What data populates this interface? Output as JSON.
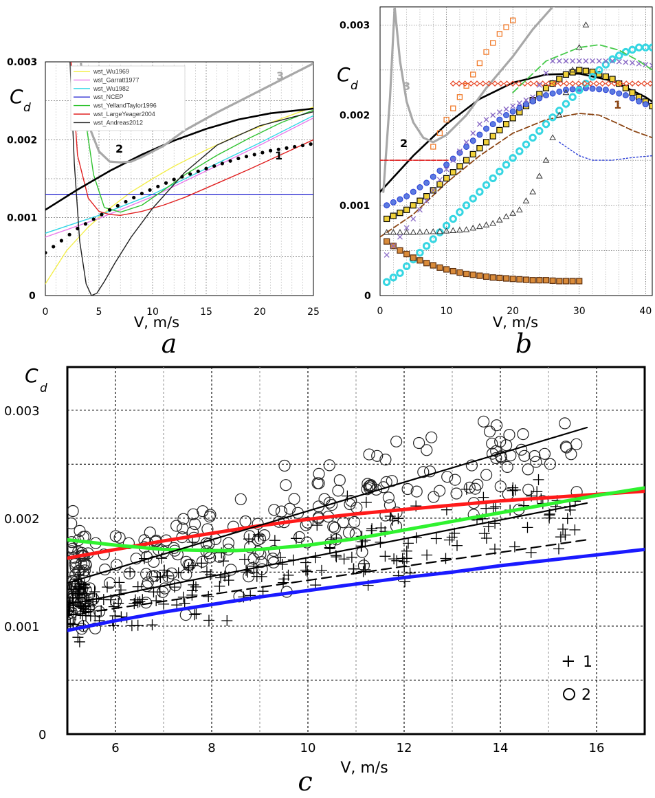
{
  "labels": {
    "panel_a": "a",
    "panel_b": "b",
    "panel_c": "c",
    "cd_main": "C",
    "cd_sub": "d",
    "x_axis": "V, m/s"
  },
  "colors": {
    "wu1969": "#f3ee4a",
    "garratt1977": "#e879e9",
    "wu1982": "#33d6e6",
    "ncep": "#2b2bd2",
    "yelland": "#2fc22f",
    "largeyeager": "#e02020",
    "andreas": "#202020",
    "gray": "#a8a8a8",
    "red": "#ff1a1a",
    "green": "#2ff22f",
    "blue": "#1a1aff"
  },
  "chart_data": [
    {
      "id": "a",
      "type": "line",
      "xlabel": "V, m/s",
      "ylabel": "Cd",
      "xlim": [
        0,
        25
      ],
      "ylim": [
        0,
        0.003
      ],
      "x_ticks": [
        "0",
        "5",
        "10",
        "15",
        "20",
        "25"
      ],
      "y_ticks": [
        "0",
        "0.001",
        "0.002",
        "0.003"
      ],
      "grid": true,
      "legend_position": "top-left",
      "legend": [
        "wst_Wu1969",
        "wst_Garratt1977",
        "wst_Wu1982",
        "wst_NCEP",
        "wst_YellandTaylor1996",
        "wst_LargeYeager2004",
        "wst_Andreas2012"
      ],
      "annotations": [
        "1",
        "2",
        "3"
      ],
      "series": [
        {
          "name": "wst_Wu1969",
          "color": "#f3ee4a",
          "x": [
            0,
            2,
            4,
            6,
            8,
            10,
            12,
            15,
            18,
            21,
            25
          ],
          "y": [
            0.00015,
            0.00058,
            0.00088,
            0.00112,
            0.00133,
            0.0015,
            0.00166,
            0.00187,
            0.00206,
            0.00222,
            0.00242
          ]
        },
        {
          "name": "wst_Garratt1977",
          "color": "#e879e9",
          "x": [
            0,
            5,
            10,
            15,
            20,
            25
          ],
          "y": [
            0.00075,
            0.00099,
            0.00127,
            0.0016,
            0.00193,
            0.00228
          ]
        },
        {
          "name": "wst_Wu1982",
          "color": "#33d6e6",
          "x": [
            0,
            5,
            10,
            15,
            20,
            25
          ],
          "y": [
            0.0008,
            0.00103,
            0.0013,
            0.00163,
            0.00196,
            0.00231
          ]
        },
        {
          "name": "wst_NCEP",
          "color": "#2b2bd2",
          "x": [
            0,
            25
          ],
          "y": [
            0.0013,
            0.0013
          ]
        },
        {
          "name": "wst_YellandTaylor1996",
          "color": "#2fc22f",
          "x": [
            3.3,
            3.8,
            4.5,
            5.5,
            7,
            9,
            11,
            13,
            16,
            19,
            22,
            25
          ],
          "y": [
            0.003,
            0.0022,
            0.00155,
            0.00113,
            0.00107,
            0.00116,
            0.00135,
            0.00155,
            0.0018,
            0.00202,
            0.00222,
            0.00238
          ]
        },
        {
          "name": "wst_LargeYeager2004",
          "color": "#e02020",
          "x": [
            2.4,
            3,
            4,
            5,
            6,
            7,
            9,
            11,
            13,
            16,
            19,
            22,
            25
          ],
          "y": [
            0.003,
            0.0018,
            0.00125,
            0.00108,
            0.00104,
            0.00103,
            0.00108,
            0.00116,
            0.00126,
            0.00144,
            0.00162,
            0.00181,
            0.002
          ]
        },
        {
          "name": "wst_Andreas2012",
          "color": "#202020",
          "x": [
            2.3,
            2.7,
            3.2,
            3.8,
            4.3,
            4.8,
            5.5,
            6.5,
            8,
            10,
            13,
            16,
            20,
            25
          ],
          "y": [
            0.003,
            0.0017,
            0.0007,
            0.00015,
            0.0,
            3e-05,
            0.00018,
            0.00042,
            0.00075,
            0.00112,
            0.00158,
            0.00193,
            0.00218,
            0.00236
          ]
        },
        {
          "name": "1",
          "style": "dotted",
          "color": "#000000",
          "x": [
            0,
            3,
            6,
            9,
            12,
            15,
            18,
            21,
            25
          ],
          "y": [
            0.00055,
            0.00086,
            0.0011,
            0.00131,
            0.00149,
            0.00163,
            0.00176,
            0.00186,
            0.00195
          ]
        },
        {
          "name": "2",
          "color": "#000000",
          "x": [
            0,
            3,
            6,
            9,
            12,
            15,
            18,
            21,
            25
          ],
          "y": [
            0.0011,
            0.00136,
            0.0016,
            0.00181,
            0.00199,
            0.00214,
            0.00226,
            0.00234,
            0.0024
          ]
        },
        {
          "name": "3",
          "color": "#a8a8a8",
          "x": [
            3.3,
            4,
            5,
            6,
            7,
            8,
            9,
            11,
            13,
            16,
            19,
            22,
            25
          ],
          "y": [
            0.003,
            0.0022,
            0.00185,
            0.00172,
            0.00171,
            0.00172,
            0.00178,
            0.00192,
            0.00212,
            0.00235,
            0.00256,
            0.00277,
            0.00298
          ]
        }
      ]
    },
    {
      "id": "b",
      "type": "scatter",
      "xlabel": "V, m/s",
      "ylabel": "Cd",
      "xlim": [
        0,
        41
      ],
      "ylim": [
        0,
        0.0032
      ],
      "x_ticks": [
        "0",
        "10",
        "20",
        "30",
        "40"
      ],
      "y_ticks": [
        "0",
        "0.001",
        "0.002",
        "0.003"
      ],
      "grid": true,
      "annotations": [
        "1",
        "2",
        "3"
      ],
      "series": [
        {
          "name": "1",
          "style": "dashed",
          "color": "#8b4513",
          "x": [
            0,
            5,
            10,
            15,
            20,
            25,
            30,
            33,
            36,
            38,
            41
          ],
          "y": [
            0.00065,
            0.0009,
            0.00125,
            0.00155,
            0.0018,
            0.00195,
            0.00202,
            0.002,
            0.0019,
            0.00183,
            0.00175
          ]
        },
        {
          "name": "2",
          "color": "#000000",
          "x": [
            0,
            5,
            10,
            15,
            20,
            25,
            30,
            35,
            40,
            41
          ],
          "y": [
            0.00115,
            0.00155,
            0.0019,
            0.00218,
            0.00236,
            0.00245,
            0.00246,
            0.00238,
            0.0022,
            0.00215
          ]
        },
        {
          "name": "3",
          "color": "#a8a8a8",
          "x": [
            0.5,
            1.5,
            2.2,
            3,
            4,
            5,
            6.5,
            8,
            10,
            13,
            16,
            20,
            23,
            26,
            28
          ],
          "y": [
            0.00115,
            0.0022,
            0.0032,
            0.0026,
            0.00215,
            0.00192,
            0.00175,
            0.0017,
            0.00178,
            0.002,
            0.0023,
            0.00265,
            0.00295,
            0.0032,
            0.0033
          ]
        },
        {
          "name": "",
          "marker": "square-yellow",
          "color": "#f1d23a",
          "x": [
            1,
            4,
            7,
            10,
            13,
            16,
            19,
            22,
            25,
            28,
            30,
            32,
            35,
            38,
            41
          ],
          "y": [
            0.00085,
            0.00095,
            0.0011,
            0.0013,
            0.0015,
            0.0017,
            0.0019,
            0.0021,
            0.0023,
            0.00245,
            0.0025,
            0.00248,
            0.0024,
            0.00225,
            0.0021
          ]
        },
        {
          "name": "",
          "marker": "circle-blue",
          "color": "#5b7be0",
          "x": [
            1,
            4,
            7,
            10,
            13,
            16,
            19,
            22,
            25,
            28,
            31,
            34,
            37,
            40
          ],
          "y": [
            0.001,
            0.0011,
            0.00125,
            0.00145,
            0.00165,
            0.00185,
            0.002,
            0.00212,
            0.00222,
            0.00228,
            0.0023,
            0.00228,
            0.00222,
            0.00212
          ]
        },
        {
          "name": "",
          "marker": "circle-cyan",
          "color": "#36d6e2",
          "x": [
            1,
            3,
            5,
            7,
            9,
            11,
            13,
            15,
            17,
            19,
            21,
            23,
            25,
            27,
            29,
            31,
            33,
            35,
            37,
            39,
            41
          ],
          "y": [
            0.00015,
            0.00025,
            0.0004,
            0.00055,
            0.0007,
            0.00085,
            0.001,
            0.00115,
            0.0013,
            0.00145,
            0.0016,
            0.00175,
            0.0019,
            0.00205,
            0.0022,
            0.00235,
            0.0025,
            0.00262,
            0.0027,
            0.00275,
            0.00275
          ]
        },
        {
          "name": "",
          "marker": "square-brown",
          "color": "#8b4513",
          "x": [
            1,
            3,
            5,
            7,
            9,
            11,
            13,
            15,
            17,
            19,
            21,
            23,
            25,
            27,
            29,
            30
          ],
          "y": [
            0.0006,
            0.0005,
            0.00042,
            0.00036,
            0.00031,
            0.00027,
            0.00024,
            0.00022,
            0.0002,
            0.00019,
            0.00018,
            0.00017,
            0.00017,
            0.00016,
            0.00016,
            0.00016
          ]
        },
        {
          "name": "",
          "marker": "triangle-open",
          "color": "#333333",
          "x": [
            1,
            5,
            9,
            13,
            17,
            21,
            23,
            25,
            27,
            29,
            31
          ],
          "y": [
            0.0007,
            0.0007,
            0.00071,
            0.00073,
            0.0008,
            0.00095,
            0.00115,
            0.0015,
            0.002,
            0.0025,
            0.003
          ]
        },
        {
          "name": "",
          "marker": "square-orange",
          "color": "#f07a2a",
          "x": [
            8,
            10,
            12,
            14,
            16,
            18,
            20
          ],
          "y": [
            0.00165,
            0.00195,
            0.0022,
            0.00245,
            0.0027,
            0.0029,
            0.00305
          ]
        },
        {
          "name": "",
          "marker": "diamond-red",
          "color": "#e84a2a",
          "x": [
            11,
            14,
            17,
            20,
            23,
            26,
            29,
            32,
            35,
            38,
            41
          ],
          "y": [
            0.00235,
            0.00235,
            0.00235,
            0.00235,
            0.00235,
            0.00235,
            0.00235,
            0.00235,
            0.00235,
            0.00235,
            0.00235
          ]
        },
        {
          "name": "",
          "marker": "cross-purple",
          "color": "#8a6bc6",
          "x": [
            1,
            4,
            7,
            10,
            13,
            15,
            17,
            20,
            23,
            26,
            29,
            32,
            35,
            38,
            41
          ],
          "y": [
            0.00045,
            0.00075,
            0.00105,
            0.0014,
            0.0017,
            0.0019,
            0.002,
            0.0021,
            0.0022,
            0.0026,
            0.0026,
            0.0026,
            0.0026,
            0.00258,
            0.00255
          ]
        },
        {
          "name": "",
          "marker": "dash-red",
          "color": "#e02020",
          "x": [
            0,
            2,
            4,
            6,
            8,
            10
          ],
          "y": [
            0.0015,
            0.0015,
            0.0015,
            0.0015,
            0.0015,
            0.0015
          ]
        },
        {
          "name": "",
          "style": "dashed-green",
          "color": "#46c94a",
          "x": [
            20,
            25,
            30,
            33,
            36,
            39,
            41
          ],
          "y": [
            0.00225,
            0.0026,
            0.00275,
            0.00278,
            0.00272,
            0.0026,
            0.0025
          ]
        },
        {
          "name": "",
          "style": "dotted-blue",
          "color": "#2a3dd6",
          "x": [
            27,
            30,
            32,
            35,
            38,
            41
          ],
          "y": [
            0.0017,
            0.00155,
            0.0015,
            0.0015,
            0.00153,
            0.00155
          ]
        }
      ]
    },
    {
      "id": "c",
      "type": "scatter",
      "xlabel": "V, m/s",
      "ylabel": "Cd",
      "xlim": [
        5,
        17
      ],
      "ylim": [
        0,
        0.0034
      ],
      "x_ticks": [
        "6",
        "8",
        "10",
        "12",
        "14",
        "16"
      ],
      "y_ticks": [
        "0",
        "0.001",
        "0.002",
        "0.003"
      ],
      "grid": true,
      "legend_position": "bottom-right",
      "legend": [
        "1",
        "2"
      ],
      "series": [
        {
          "name": "",
          "color": "#ff1a1a",
          "x": [
            5,
            6,
            7,
            8,
            9,
            10,
            11,
            12,
            13,
            14,
            15,
            16,
            17
          ],
          "y": [
            0.00163,
            0.00171,
            0.00179,
            0.00186,
            0.00193,
            0.00199,
            0.00204,
            0.00208,
            0.00212,
            0.00216,
            0.00219,
            0.00222,
            0.00225
          ]
        },
        {
          "name": "",
          "color": "#2ff22f",
          "x": [
            5,
            6,
            7,
            8,
            8.5,
            9,
            10,
            11,
            12,
            13,
            14,
            15,
            16,
            17
          ],
          "y": [
            0.0018,
            0.00175,
            0.00171,
            0.0017,
            0.0017,
            0.00171,
            0.00175,
            0.00181,
            0.00189,
            0.00197,
            0.00205,
            0.00213,
            0.00221,
            0.00228
          ]
        },
        {
          "name": "",
          "color": "#1a1aff",
          "x": [
            5,
            6,
            7,
            8,
            9,
            10,
            11,
            12,
            13,
            14,
            15,
            16,
            17
          ],
          "y": [
            0.00096,
            0.00105,
            0.00113,
            0.0012,
            0.00127,
            0.00133,
            0.00139,
            0.00145,
            0.0015,
            0.00156,
            0.00161,
            0.00166,
            0.00171
          ]
        },
        {
          "name": "",
          "color": "#000000",
          "x": [
            5,
            15.8
          ],
          "y": [
            0.0014,
            0.00284
          ]
        },
        {
          "name": "",
          "color": "#000000",
          "x": [
            5,
            15.8
          ],
          "y": [
            0.0012,
            0.00214
          ]
        },
        {
          "name": "",
          "style": "dashed",
          "color": "#000000",
          "x": [
            5,
            15.8
          ],
          "y": [
            0.0011,
            0.0018
          ]
        },
        {
          "name": "1",
          "marker": "plus",
          "points": "scattered cloud, V 5-16 m/s, Cd 0.0006-0.0026"
        },
        {
          "name": "2",
          "marker": "circle-open",
          "points": "scattered cloud, V 5-16 m/s, Cd 0.0004-0.0032"
        }
      ]
    }
  ]
}
